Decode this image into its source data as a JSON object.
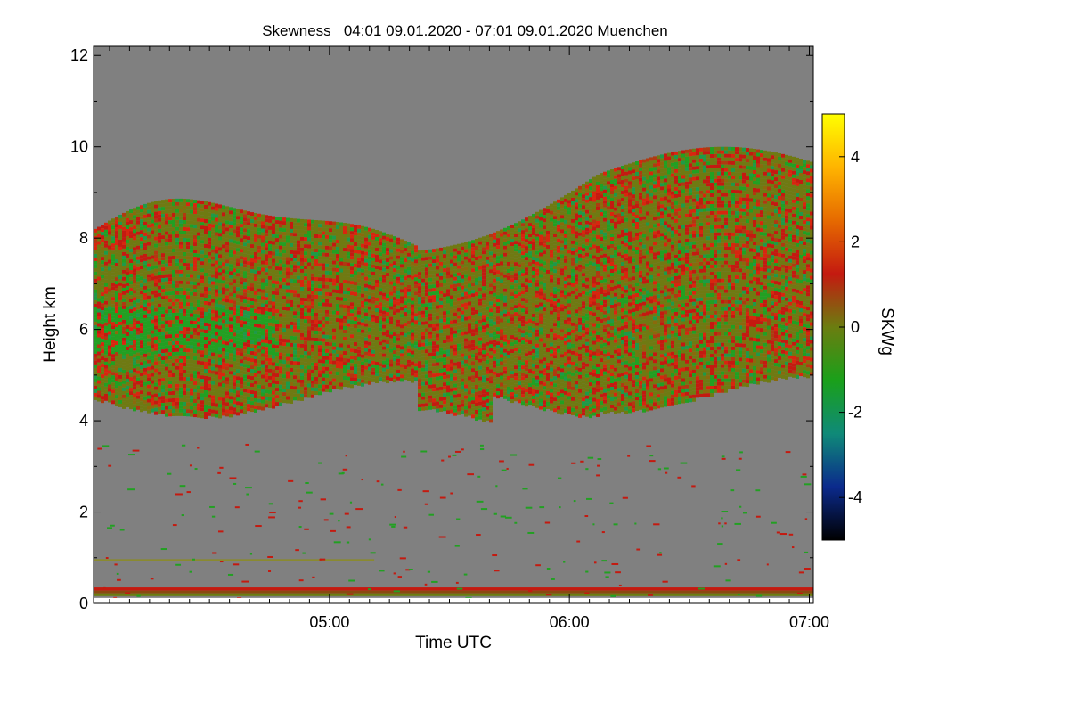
{
  "chart_data": {
    "type": "heatmap",
    "title": "Skewness   04:01 09.01.2020 - 07:01 09.01.2020 Muenchen",
    "xlabel": "Time UTC",
    "ylabel": "Height km",
    "xlim": [
      "04:01",
      "07:01"
    ],
    "ylim": [
      0,
      12.2
    ],
    "xticks": [
      "05:00",
      "06:00",
      "07:00"
    ],
    "yticks": [
      0,
      2,
      4,
      6,
      8,
      10,
      12
    ],
    "colorbar": {
      "label": "SKWg",
      "range": [
        -5,
        5
      ],
      "ticks": [
        -4,
        -2,
        0,
        2,
        4
      ],
      "colors": [
        "#000000",
        "#0b2a8c",
        "#0f8a78",
        "#1aa01a",
        "#6b7d10",
        "#c41a10",
        "#e66a00",
        "#ffb400",
        "#ffff00"
      ]
    },
    "background_color": "#808080",
    "layers": [
      {
        "description": "main cloud layer",
        "time_range": [
          "04:01",
          "07:01"
        ],
        "height_range_km": [
          3.8,
          9.9
        ],
        "dominant_skewness": [
          -1,
          2
        ]
      },
      {
        "description": "near-surface band",
        "time_range": [
          "04:01",
          "07:01"
        ],
        "height_range_km": [
          0.15,
          0.35
        ],
        "dominant_skewness": [
          0,
          2
        ]
      }
    ]
  }
}
